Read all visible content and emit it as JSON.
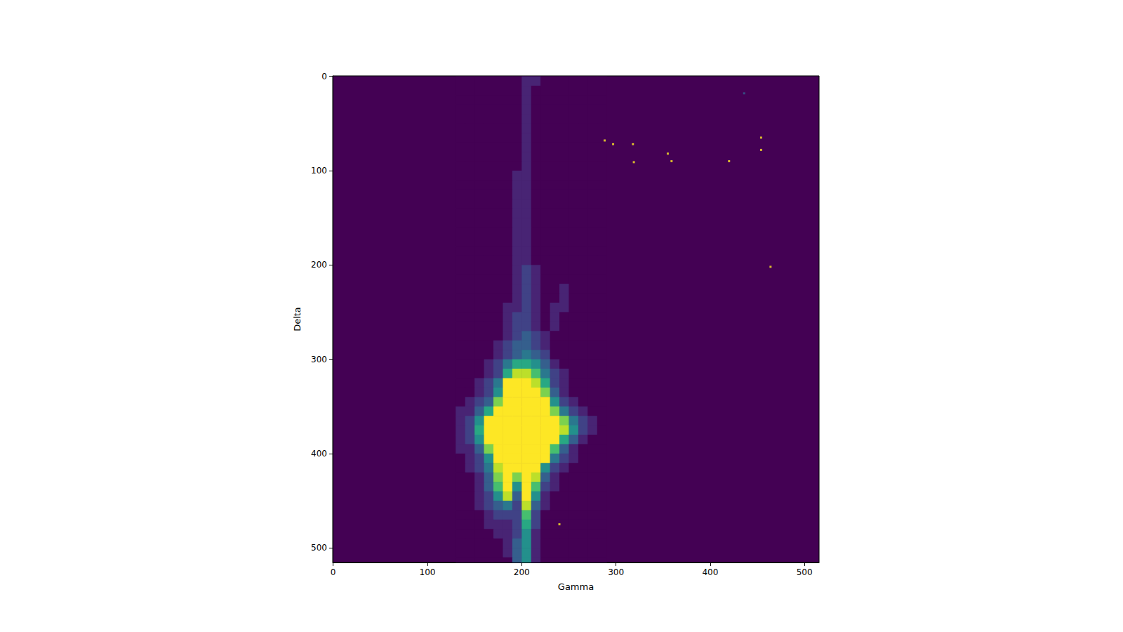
{
  "chart_data": {
    "type": "heatmap",
    "x_label": "Gamma",
    "y_label": "Delta",
    "xlim": [
      -0.5,
      515.5
    ],
    "ylim": [
      515.5,
      -0.5
    ],
    "xticks": [
      0,
      100,
      200,
      300,
      400,
      500
    ],
    "yticks": [
      0,
      100,
      200,
      300,
      400,
      500
    ],
    "grid": false,
    "color_range": [
      0,
      10
    ],
    "x": [
      135,
      145,
      155,
      165,
      175,
      185,
      195,
      205,
      215,
      225,
      235,
      245,
      255,
      265,
      275,
      285
    ],
    "y": [
      5,
      15,
      25,
      35,
      45,
      55,
      65,
      75,
      85,
      95,
      105,
      115,
      125,
      135,
      145,
      155,
      165,
      175,
      185,
      195,
      205,
      215,
      225,
      235,
      245,
      255,
      265,
      275,
      285,
      295,
      305,
      315,
      325,
      335,
      345,
      355,
      365,
      375,
      385,
      395,
      405,
      415,
      425,
      435,
      445,
      455,
      465,
      475,
      485,
      495,
      505,
      515
    ],
    "z": [
      [
        0,
        0,
        0,
        0,
        0,
        0,
        0,
        1,
        1,
        0,
        0,
        0,
        0,
        0,
        0,
        0
      ],
      [
        0,
        0,
        0,
        0,
        0,
        0,
        0,
        1,
        0,
        0,
        0,
        0,
        0,
        0,
        0,
        0
      ],
      [
        0,
        0,
        0,
        0,
        0,
        0,
        0,
        1,
        0,
        0,
        0,
        0,
        0,
        0,
        0,
        0
      ],
      [
        0,
        0,
        0,
        0,
        0,
        0,
        0,
        1,
        0,
        0,
        0,
        0,
        0,
        0,
        0,
        0
      ],
      [
        0,
        0,
        0,
        0,
        0,
        0,
        0,
        1,
        0,
        0,
        0,
        0,
        0,
        0,
        0,
        0
      ],
      [
        0,
        0,
        0,
        0,
        0,
        0,
        0,
        1,
        0,
        0,
        0,
        0,
        0,
        0,
        0,
        0
      ],
      [
        0,
        0,
        0,
        0,
        0,
        0,
        0,
        1,
        0,
        0,
        0,
        0,
        0,
        0,
        0,
        0
      ],
      [
        0,
        0,
        0,
        0,
        0,
        0,
        0,
        1,
        0,
        0,
        0,
        0,
        0,
        0,
        0,
        0
      ],
      [
        0,
        0,
        0,
        0,
        0,
        0,
        0,
        1,
        0,
        0,
        0,
        0,
        0,
        0,
        0,
        0
      ],
      [
        0,
        0,
        0,
        0,
        0,
        0,
        0,
        1,
        0,
        0,
        0,
        0,
        0,
        0,
        0,
        0
      ],
      [
        0,
        0,
        0,
        0,
        0,
        0,
        1,
        1,
        0,
        0,
        0,
        0,
        0,
        0,
        0,
        0
      ],
      [
        0,
        0,
        0,
        0,
        0,
        0,
        1,
        1,
        0,
        0,
        0,
        0,
        0,
        0,
        0,
        0
      ],
      [
        0,
        0,
        0,
        0,
        0,
        0,
        1,
        1,
        0,
        0,
        0,
        0,
        0,
        0,
        0,
        0
      ],
      [
        0,
        0,
        0,
        0,
        0,
        0,
        1,
        1,
        0,
        0,
        0,
        0,
        0,
        0,
        0,
        0
      ],
      [
        0,
        0,
        0,
        0,
        0,
        0,
        1,
        1,
        0,
        0,
        0,
        0,
        0,
        0,
        0,
        0
      ],
      [
        0,
        0,
        0,
        0,
        0,
        0,
        1,
        1,
        0,
        0,
        0,
        0,
        0,
        0,
        0,
        0
      ],
      [
        0,
        0,
        0,
        0,
        0,
        0,
        1,
        1,
        0,
        0,
        0,
        0,
        0,
        0,
        0,
        0
      ],
      [
        0,
        0,
        0,
        0,
        0,
        0,
        1,
        1,
        0,
        0,
        0,
        0,
        0,
        0,
        0,
        0
      ],
      [
        0,
        0,
        0,
        0,
        0,
        0,
        1,
        1,
        0,
        0,
        0,
        0,
        0,
        0,
        0,
        0
      ],
      [
        0,
        0,
        0,
        0,
        0,
        0,
        1,
        1,
        0,
        0,
        0,
        0,
        0,
        0,
        0,
        0
      ],
      [
        0,
        0,
        0,
        0,
        0,
        0,
        1,
        2,
        1,
        0,
        0,
        0,
        0,
        0,
        0,
        0
      ],
      [
        0,
        0,
        0,
        0,
        0,
        0,
        1,
        2,
        1,
        0,
        0,
        0,
        0,
        0,
        0,
        0
      ],
      [
        0,
        0,
        0,
        0,
        0,
        0,
        1,
        2,
        1,
        0,
        0,
        1,
        0,
        0,
        0,
        0
      ],
      [
        0,
        0,
        0,
        0,
        0,
        0,
        1,
        2,
        1,
        0,
        0,
        1,
        0,
        0,
        0,
        0
      ],
      [
        0,
        0,
        0,
        0,
        0,
        1,
        1,
        2,
        1,
        0,
        1,
        1,
        0,
        0,
        0,
        0
      ],
      [
        0,
        0,
        0,
        0,
        0,
        1,
        2,
        2,
        1,
        0,
        1,
        0,
        0,
        0,
        0,
        0
      ],
      [
        0,
        0,
        0,
        0,
        0,
        1,
        2,
        2,
        1,
        0,
        1,
        0,
        0,
        0,
        0,
        0
      ],
      [
        0,
        0,
        0,
        0,
        0,
        1,
        2,
        3,
        2,
        1,
        0,
        0,
        0,
        0,
        0,
        0
      ],
      [
        0,
        0,
        0,
        0,
        1,
        2,
        3,
        3,
        2,
        1,
        0,
        0,
        0,
        0,
        0,
        0
      ],
      [
        0,
        0,
        0,
        0,
        1,
        2,
        3,
        4,
        3,
        2,
        0,
        0,
        0,
        0,
        0,
        0
      ],
      [
        0,
        0,
        0,
        1,
        2,
        4,
        6,
        6,
        5,
        3,
        1,
        0,
        0,
        0,
        0,
        0
      ],
      [
        0,
        0,
        0,
        1,
        2,
        6,
        9,
        9,
        7,
        4,
        2,
        1,
        0,
        0,
        0,
        0
      ],
      [
        0,
        0,
        1,
        2,
        4,
        10,
        10,
        10,
        9,
        6,
        2,
        1,
        0,
        0,
        0,
        0
      ],
      [
        0,
        0,
        1,
        2,
        5,
        10,
        10,
        10,
        10,
        8,
        3,
        1,
        0,
        0,
        0,
        0
      ],
      [
        0,
        1,
        2,
        3,
        8,
        10,
        10,
        10,
        10,
        10,
        5,
        2,
        1,
        0,
        0,
        0
      ],
      [
        1,
        1,
        3,
        6,
        10,
        10,
        10,
        10,
        10,
        10,
        8,
        4,
        2,
        1,
        0,
        0
      ],
      [
        1,
        2,
        5,
        10,
        10,
        10,
        10,
        10,
        10,
        10,
        10,
        8,
        4,
        2,
        1,
        0
      ],
      [
        1,
        2,
        6,
        10,
        10,
        10,
        10,
        10,
        10,
        10,
        10,
        9,
        5,
        2,
        1,
        0
      ],
      [
        1,
        2,
        5,
        10,
        10,
        10,
        10,
        10,
        10,
        10,
        10,
        6,
        3,
        1,
        0,
        0
      ],
      [
        1,
        1,
        3,
        8,
        10,
        10,
        10,
        10,
        10,
        10,
        7,
        3,
        1,
        0,
        0,
        0
      ],
      [
        0,
        1,
        2,
        5,
        10,
        10,
        10,
        10,
        10,
        10,
        4,
        2,
        1,
        0,
        0,
        0
      ],
      [
        0,
        1,
        2,
        4,
        9,
        10,
        10,
        10,
        10,
        5,
        2,
        1,
        0,
        0,
        0,
        0
      ],
      [
        0,
        0,
        1,
        3,
        8,
        10,
        8,
        10,
        9,
        3,
        1,
        0,
        0,
        0,
        0,
        0
      ],
      [
        0,
        0,
        1,
        3,
        7,
        10,
        5,
        10,
        7,
        2,
        1,
        0,
        0,
        0,
        0,
        0
      ],
      [
        0,
        0,
        1,
        2,
        5,
        9,
        3,
        10,
        5,
        1,
        0,
        0,
        0,
        0,
        0,
        0
      ],
      [
        0,
        0,
        1,
        2,
        3,
        4,
        2,
        9,
        3,
        1,
        0,
        0,
        0,
        0,
        0,
        0
      ],
      [
        0,
        0,
        0,
        1,
        2,
        2,
        2,
        7,
        2,
        0,
        0,
        0,
        0,
        0,
        0,
        0
      ],
      [
        0,
        0,
        0,
        1,
        1,
        1,
        2,
        6,
        2,
        0,
        0,
        0,
        0,
        0,
        0,
        0
      ],
      [
        0,
        0,
        0,
        0,
        1,
        1,
        2,
        5,
        1,
        0,
        0,
        0,
        0,
        0,
        0,
        0
      ],
      [
        0,
        0,
        0,
        0,
        0,
        1,
        3,
        5,
        1,
        0,
        0,
        0,
        0,
        0,
        0,
        0
      ],
      [
        0,
        0,
        0,
        0,
        0,
        1,
        3,
        5,
        1,
        0,
        0,
        0,
        0,
        0,
        0,
        0
      ],
      [
        0,
        0,
        0,
        0,
        0,
        0,
        3,
        5,
        1,
        0,
        0,
        0,
        0,
        0,
        0,
        0
      ]
    ],
    "hot_pixels": [
      [
        288,
        68,
        10
      ],
      [
        297,
        72,
        10
      ],
      [
        318,
        72,
        10
      ],
      [
        355,
        82,
        10
      ],
      [
        359,
        90,
        10
      ],
      [
        319,
        91,
        10
      ],
      [
        420,
        90,
        10
      ],
      [
        454,
        65,
        10
      ],
      [
        454,
        78,
        10
      ],
      [
        464,
        202,
        10
      ],
      [
        240,
        475,
        10
      ],
      [
        436,
        18,
        3
      ]
    ]
  }
}
